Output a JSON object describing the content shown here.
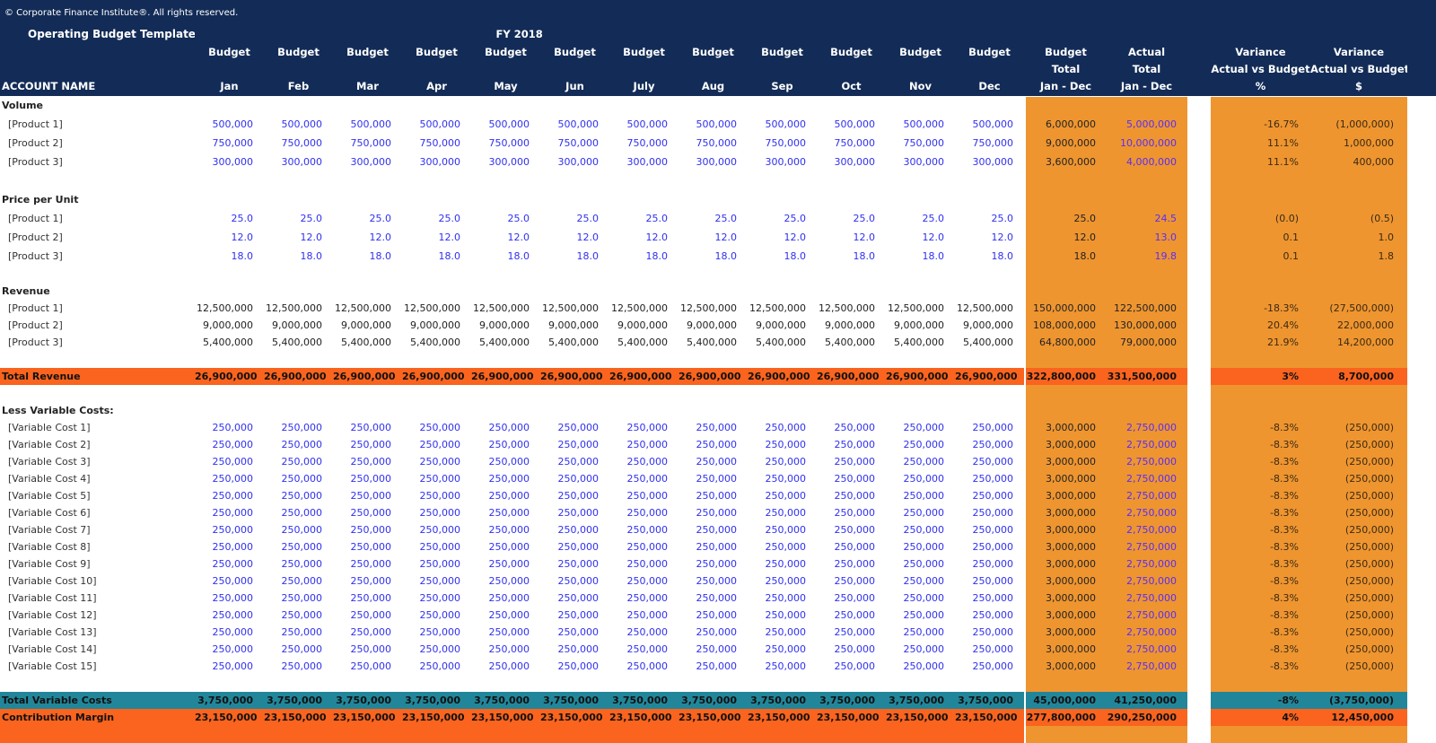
{
  "header": {
    "copyright": "© Corporate Finance Institute®. All rights reserved.",
    "title": "Operating Budget Template",
    "fiscal_year": "FY 2018",
    "account_name_label": "ACCOUNT NAME",
    "month_top_label": "Budget",
    "months": [
      "Jan",
      "Feb",
      "Mar",
      "Apr",
      "May",
      "Jun",
      "July",
      "Aug",
      "Sep",
      "Oct",
      "Nov",
      "Dec"
    ],
    "budget_total": [
      "Budget",
      "Total",
      "Jan - Dec"
    ],
    "actual_total": [
      "Actual",
      "Total",
      "Jan - Dec"
    ],
    "variance_pct": [
      "Variance",
      "Actual vs Budget",
      "%"
    ],
    "variance_usd": [
      "Variance",
      "Actual vs Budget",
      "$"
    ]
  },
  "colors": {
    "header": "#132c57",
    "totals_block": "#ee9530",
    "total_revenue": "#fa641e",
    "total_variable_costs": "#22869a",
    "contribution_margin": "#fa641e",
    "input_blue": "#3030f0"
  },
  "rows": [
    {
      "type": "section",
      "label": "Volume"
    },
    {
      "type": "item",
      "style": "input",
      "label": "[Product 1]",
      "months": [
        "500,000",
        "500,000",
        "500,000",
        "500,000",
        "500,000",
        "500,000",
        "500,000",
        "500,000",
        "500,000",
        "500,000",
        "500,000",
        "500,000"
      ],
      "budget_total": "6,000,000",
      "actual_total": "5,000,000",
      "var_pct": "-16.7%",
      "var_usd": "(1,000,000)"
    },
    {
      "type": "item",
      "style": "input",
      "label": "[Product 2]",
      "months": [
        "750,000",
        "750,000",
        "750,000",
        "750,000",
        "750,000",
        "750,000",
        "750,000",
        "750,000",
        "750,000",
        "750,000",
        "750,000",
        "750,000"
      ],
      "budget_total": "9,000,000",
      "actual_total": "10,000,000",
      "var_pct": "11.1%",
      "var_usd": "1,000,000"
    },
    {
      "type": "item",
      "style": "input",
      "label": "[Product 3]",
      "months": [
        "300,000",
        "300,000",
        "300,000",
        "300,000",
        "300,000",
        "300,000",
        "300,000",
        "300,000",
        "300,000",
        "300,000",
        "300,000",
        "300,000"
      ],
      "budget_total": "3,600,000",
      "actual_total": "4,000,000",
      "var_pct": "11.1%",
      "var_usd": "400,000"
    },
    {
      "type": "blank"
    },
    {
      "type": "section",
      "label": "Price per Unit"
    },
    {
      "type": "item",
      "style": "input",
      "label": "[Product 1]",
      "months": [
        "25.0",
        "25.0",
        "25.0",
        "25.0",
        "25.0",
        "25.0",
        "25.0",
        "25.0",
        "25.0",
        "25.0",
        "25.0",
        "25.0"
      ],
      "budget_total": "25.0",
      "actual_total": "24.5",
      "var_pct": "(0.0)",
      "var_usd": "(0.5)"
    },
    {
      "type": "item",
      "style": "input",
      "label": "[Product 2]",
      "months": [
        "12.0",
        "12.0",
        "12.0",
        "12.0",
        "12.0",
        "12.0",
        "12.0",
        "12.0",
        "12.0",
        "12.0",
        "12.0",
        "12.0"
      ],
      "budget_total": "12.0",
      "actual_total": "13.0",
      "var_pct": "0.1",
      "var_usd": "1.0"
    },
    {
      "type": "item",
      "style": "input",
      "label": "[Product 3]",
      "months": [
        "18.0",
        "18.0",
        "18.0",
        "18.0",
        "18.0",
        "18.0",
        "18.0",
        "18.0",
        "18.0",
        "18.0",
        "18.0",
        "18.0"
      ],
      "budget_total": "18.0",
      "actual_total": "19.8",
      "var_pct": "0.1",
      "var_usd": "1.8"
    },
    {
      "type": "blank"
    },
    {
      "type": "section",
      "label": "Revenue"
    },
    {
      "type": "item",
      "style": "calc",
      "label": "[Product 1]",
      "months": [
        "12,500,000",
        "12,500,000",
        "12,500,000",
        "12,500,000",
        "12,500,000",
        "12,500,000",
        "12,500,000",
        "12,500,000",
        "12,500,000",
        "12,500,000",
        "12,500,000",
        "12,500,000"
      ],
      "budget_total": "150,000,000",
      "actual_total": "122,500,000",
      "var_pct": "-18.3%",
      "var_usd": "(27,500,000)"
    },
    {
      "type": "item",
      "style": "calc",
      "label": "[Product 2]",
      "months": [
        "9,000,000",
        "9,000,000",
        "9,000,000",
        "9,000,000",
        "9,000,000",
        "9,000,000",
        "9,000,000",
        "9,000,000",
        "9,000,000",
        "9,000,000",
        "9,000,000",
        "9,000,000"
      ],
      "budget_total": "108,000,000",
      "actual_total": "130,000,000",
      "var_pct": "20.4%",
      "var_usd": "22,000,000"
    },
    {
      "type": "item",
      "style": "calc",
      "label": "[Product 3]",
      "months": [
        "5,400,000",
        "5,400,000",
        "5,400,000",
        "5,400,000",
        "5,400,000",
        "5,400,000",
        "5,400,000",
        "5,400,000",
        "5,400,000",
        "5,400,000",
        "5,400,000",
        "5,400,000"
      ],
      "budget_total": "64,800,000",
      "actual_total": "79,000,000",
      "var_pct": "21.9%",
      "var_usd": "14,200,000"
    },
    {
      "type": "blank"
    },
    {
      "type": "total",
      "variant": "tot-rev",
      "label": "Total Revenue",
      "months": [
        "26,900,000",
        "26,900,000",
        "26,900,000",
        "26,900,000",
        "26,900,000",
        "26,900,000",
        "26,900,000",
        "26,900,000",
        "26,900,000",
        "26,900,000",
        "26,900,000",
        "26,900,000"
      ],
      "budget_total": "322,800,000",
      "actual_total": "331,500,000",
      "var_pct": "3%",
      "var_usd": "8,700,000"
    },
    {
      "type": "blank"
    },
    {
      "type": "section",
      "label": "Less Variable Costs:"
    },
    {
      "type": "vc",
      "label": "[Variable Cost 1]"
    },
    {
      "type": "vc",
      "label": "[Variable Cost 2]"
    },
    {
      "type": "vc",
      "label": "[Variable Cost 3]"
    },
    {
      "type": "vc",
      "label": "[Variable Cost 4]"
    },
    {
      "type": "vc",
      "label": "[Variable Cost 5]"
    },
    {
      "type": "vc",
      "label": "[Variable Cost 6]"
    },
    {
      "type": "vc",
      "label": "[Variable Cost 7]"
    },
    {
      "type": "vc",
      "label": "[Variable Cost 8]"
    },
    {
      "type": "vc",
      "label": "[Variable Cost 9]"
    },
    {
      "type": "vc",
      "label": "[Variable Cost 10]"
    },
    {
      "type": "vc",
      "label": "[Variable Cost 11]"
    },
    {
      "type": "vc",
      "label": "[Variable Cost 12]"
    },
    {
      "type": "vc",
      "label": "[Variable Cost 13]"
    },
    {
      "type": "vc",
      "label": "[Variable Cost 14]"
    },
    {
      "type": "vc",
      "label": "[Variable Cost 15]"
    },
    {
      "type": "blank"
    },
    {
      "type": "total",
      "variant": "tot-vc",
      "label": "Total Variable Costs",
      "months": [
        "3,750,000",
        "3,750,000",
        "3,750,000",
        "3,750,000",
        "3,750,000",
        "3,750,000",
        "3,750,000",
        "3,750,000",
        "3,750,000",
        "3,750,000",
        "3,750,000",
        "3,750,000"
      ],
      "budget_total": "45,000,000",
      "actual_total": "41,250,000",
      "var_pct": "-8%",
      "var_usd": "(3,750,000)"
    },
    {
      "type": "total",
      "variant": "tot-cm",
      "label": "Contribution Margin",
      "months": [
        "23,150,000",
        "23,150,000",
        "23,150,000",
        "23,150,000",
        "23,150,000",
        "23,150,000",
        "23,150,000",
        "23,150,000",
        "23,150,000",
        "23,150,000",
        "23,150,000",
        "23,150,000"
      ],
      "budget_total": "277,800,000",
      "actual_total": "290,250,000",
      "var_pct": "4%",
      "var_usd": "12,450,000"
    }
  ],
  "variable_cost_values": {
    "months": [
      "250,000",
      "250,000",
      "250,000",
      "250,000",
      "250,000",
      "250,000",
      "250,000",
      "250,000",
      "250,000",
      "250,000",
      "250,000",
      "250,000"
    ],
    "budget_total": "3,000,000",
    "actual_total": "2,750,000",
    "var_pct": "-8.3%",
    "var_usd": "(250,000)"
  }
}
